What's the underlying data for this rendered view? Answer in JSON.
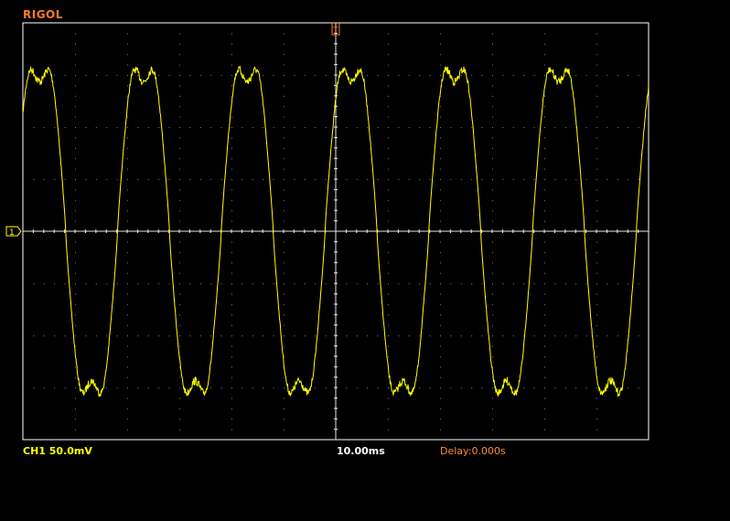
{
  "header": {
    "brand": "RIGOL"
  },
  "status_bar": {
    "channel_label": "CH1 50.0mV",
    "timebase_label": "10.00ms",
    "delay_label": "Delay:0.000s"
  },
  "display": {
    "trace_color": "#ffff00",
    "grid_color": "#bdbdbd",
    "frame_color": "#ffffff",
    "trigger_marker_color": "#ff7a2a",
    "channel_marker_label": "1",
    "trigger_marker_label": "T",
    "divisions_x": 12,
    "divisions_y": 8
  },
  "chart_data": {
    "type": "line",
    "series": [
      {
        "name": "CH1",
        "waveform": "distorted sine",
        "cycles_visible": 6,
        "amplitude_divisions": 3.6,
        "offset_divisions": 0
      }
    ],
    "grid": true
  }
}
